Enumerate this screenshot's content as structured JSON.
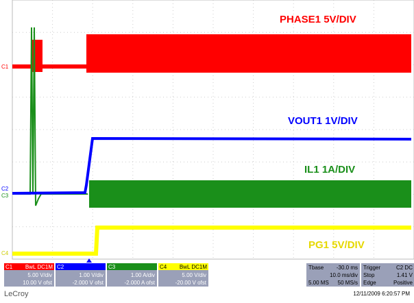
{
  "traces": [
    {
      "marker": "C1",
      "label": "PHASE1 5V/DIV"
    },
    {
      "marker": "C2",
      "label": "VOUT1 1V/DIV"
    },
    {
      "marker": "C3",
      "label": "IL1 1A/DIV"
    },
    {
      "marker": "C4",
      "label": "PG1 5V/DIV"
    }
  ],
  "channels": [
    {
      "name": "C1",
      "coupling": "BwL DC1M",
      "scale": "5.00 V/div",
      "offset": "10.00 V ofst"
    },
    {
      "name": "C2",
      "scale": "1.00 V/div",
      "offset": "-2.000 V ofst"
    },
    {
      "name": "C3",
      "scale": "1.00 A/div",
      "offset": "-2.000 A ofst"
    },
    {
      "name": "C4",
      "coupling": "BwL DC1M",
      "scale": "5.00 V/div",
      "offset": "-20.00 V ofst"
    }
  ],
  "timebase": {
    "label": "Tbase",
    "position": "-30.0 ms",
    "scale": "10.0 ms/div",
    "samples": "5.00 MS",
    "rate": "50 MS/s"
  },
  "trigger": {
    "label": "Trigger",
    "source": "C2 DC",
    "mode": "Stop",
    "level": "1.41 V",
    "type": "Edge",
    "slope": "Positive"
  },
  "brand": "LeCroy",
  "timestamp": "12/11/2009 6:20:57 PM"
}
